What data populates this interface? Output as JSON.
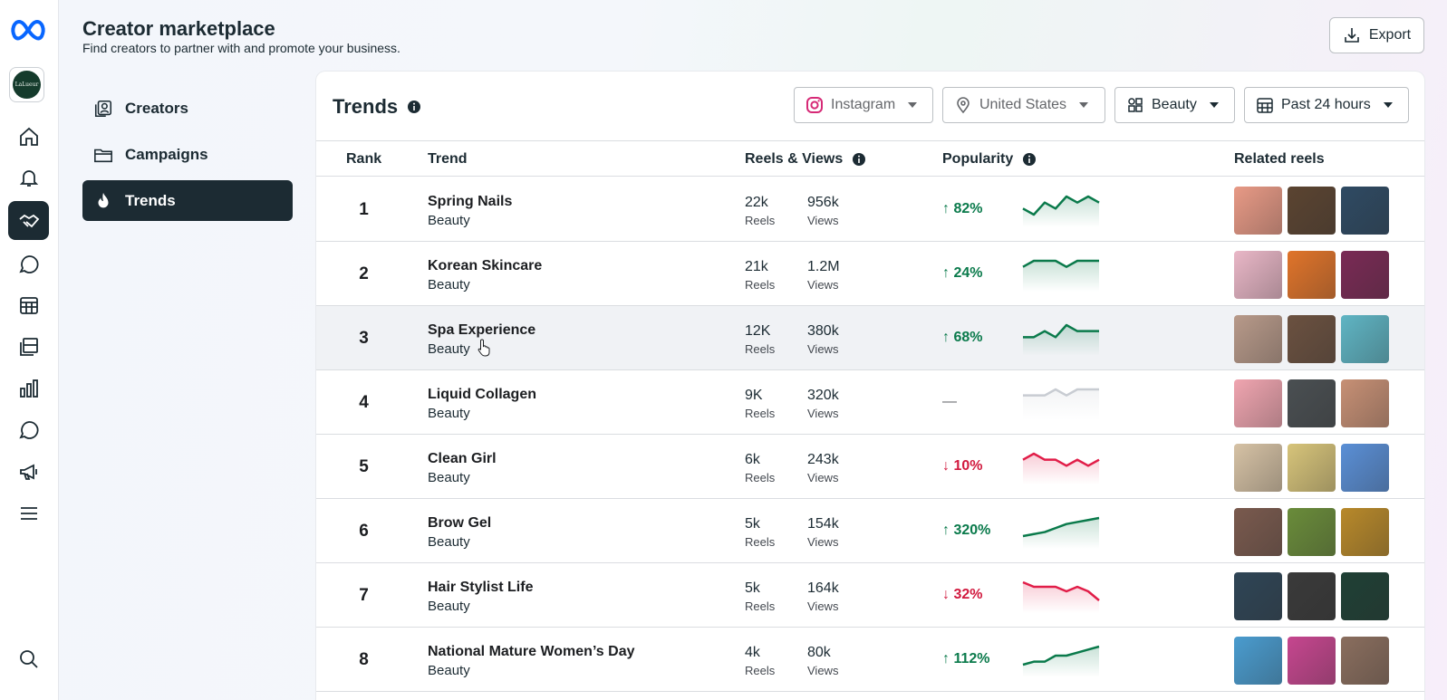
{
  "header": {
    "title": "Creator marketplace",
    "subtitle": "Find creators to partner with and promote your business.",
    "export_label": "Export"
  },
  "account": {
    "avatar_text": "LaLueur"
  },
  "sidenav": [
    {
      "label": "Creators",
      "icon": "creators-icon",
      "active": false
    },
    {
      "label": "Campaigns",
      "icon": "folder-icon",
      "active": false
    },
    {
      "label": "Trends",
      "icon": "flame-icon",
      "active": true
    }
  ],
  "trends": {
    "title": "Trends",
    "filters": {
      "platform": "Instagram",
      "location": "United States",
      "category": "Beauty",
      "period": "Past 24 hours"
    },
    "columns": {
      "rank": "Rank",
      "trend": "Trend",
      "reels_views": "Reels & Views",
      "popularity": "Popularity",
      "related": "Related reels"
    },
    "reels_label": "Reels",
    "views_label": "Views",
    "rows": [
      {
        "rank": "1",
        "name": "Spring Nails",
        "category": "Beauty",
        "reels": "22k",
        "views": "956k",
        "pct": "↑ 82%",
        "direction": "up",
        "spark": [
          3,
          4,
          2,
          3,
          1,
          2,
          1,
          2
        ],
        "thumbs": [
          "#e89a86",
          "#5b4431",
          "#2e4a63"
        ]
      },
      {
        "rank": "2",
        "name": "Korean Skincare",
        "category": "Beauty",
        "reels": "21k",
        "views": "1.2M",
        "pct": "↑ 24%",
        "direction": "up",
        "spark": [
          3,
          2,
          2,
          2,
          3,
          2,
          2,
          2
        ],
        "thumbs": [
          "#e9b7c7",
          "#e0742a",
          "#7a2a55"
        ]
      },
      {
        "rank": "3",
        "name": "Spa Experience",
        "category": "Beauty",
        "reels": "12K",
        "views": "380k",
        "pct": "↑ 68%",
        "direction": "up",
        "spark": [
          3,
          3,
          2,
          3,
          1,
          2,
          2,
          2
        ],
        "thumbs": [
          "#b89a8a",
          "#6b5140",
          "#5fb5c4"
        ]
      },
      {
        "rank": "4",
        "name": "Liquid Collagen",
        "category": "Beauty",
        "reels": "9K",
        "views": "320k",
        "pct": "—",
        "direction": "flat",
        "spark": [
          3,
          3,
          3,
          2,
          3,
          2,
          2,
          2
        ],
        "thumbs": [
          "#f0a5b0",
          "#4a4f52",
          "#c79075"
        ]
      },
      {
        "rank": "5",
        "name": "Clean Girl",
        "category": "Beauty",
        "reels": "6k",
        "views": "243k",
        "pct": "↓ 10%",
        "direction": "down",
        "spark": [
          2,
          1,
          2,
          2,
          3,
          2,
          3,
          2
        ],
        "thumbs": [
          "#d6c2a5",
          "#d7c47a",
          "#5a8fd6"
        ]
      },
      {
        "rank": "6",
        "name": "Brow Gel",
        "category": "Beauty",
        "reels": "5k",
        "views": "154k",
        "pct": "↑ 320%",
        "direction": "up",
        "spark": [
          9,
          8,
          7,
          5,
          3,
          2,
          1,
          0
        ],
        "thumbs": [
          "#7a5a4e",
          "#6a8c3a",
          "#b8892a"
        ]
      },
      {
        "rank": "7",
        "name": "Hair Stylist Life",
        "category": "Beauty",
        "reels": "5k",
        "views": "164k",
        "pct": "↓ 32%",
        "direction": "down",
        "spark": [
          1,
          2,
          2,
          2,
          3,
          2,
          3,
          5
        ],
        "thumbs": [
          "#2f4556",
          "#3a3a3a",
          "#1f4035"
        ]
      },
      {
        "rank": "8",
        "name": "National Mature Women’s Day",
        "category": "Beauty",
        "reels": "4k",
        "views": "80k",
        "pct": "↑ 112%",
        "direction": "up",
        "spark": [
          6,
          5,
          5,
          3,
          3,
          2,
          1,
          0
        ],
        "thumbs": [
          "#4a9ccf",
          "#c6468f",
          "#8a6e5e"
        ]
      }
    ]
  },
  "colors": {
    "up": "#0a7a4b",
    "down": "#e11d48",
    "flat": "#c8ccd2",
    "brand": "#0866ff",
    "dark": "#1c2b33"
  }
}
